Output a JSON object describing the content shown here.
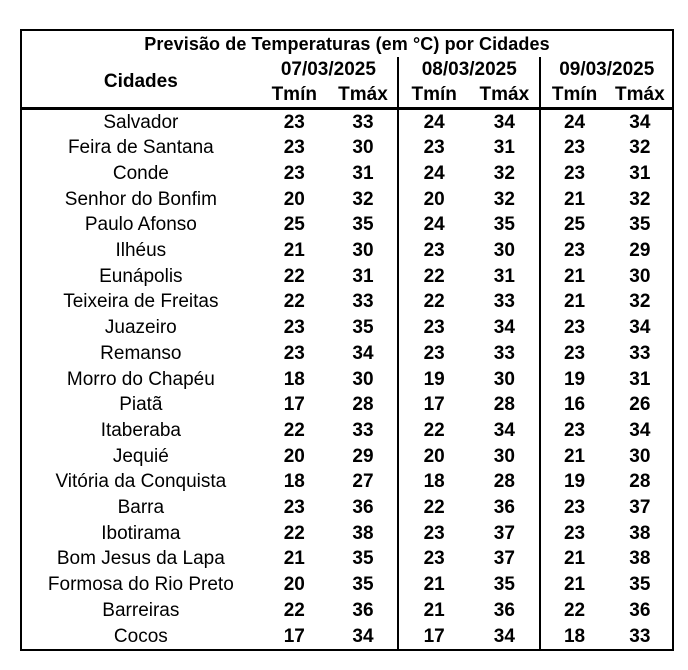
{
  "chart_data": {
    "type": "table",
    "title": "Previsão de Temperaturas (em °C) por Cidades",
    "city_column_header": "Cidades",
    "date_headers": [
      "07/03/2025",
      "08/03/2025",
      "09/03/2025"
    ],
    "sub_headers": [
      "Tmín",
      "Tmáx"
    ],
    "rows": [
      {
        "city": "Salvador",
        "temps": [
          23,
          33,
          24,
          34,
          24,
          34
        ]
      },
      {
        "city": "Feira de Santana",
        "temps": [
          23,
          30,
          23,
          31,
          23,
          32
        ]
      },
      {
        "city": "Conde",
        "temps": [
          23,
          31,
          24,
          32,
          23,
          31
        ]
      },
      {
        "city": "Senhor do Bonfim",
        "temps": [
          20,
          32,
          20,
          32,
          21,
          32
        ]
      },
      {
        "city": "Paulo Afonso",
        "temps": [
          25,
          35,
          24,
          35,
          25,
          35
        ]
      },
      {
        "city": "Ilhéus",
        "temps": [
          21,
          30,
          23,
          30,
          23,
          29
        ]
      },
      {
        "city": "Eunápolis",
        "temps": [
          22,
          31,
          22,
          31,
          21,
          30
        ]
      },
      {
        "city": "Teixeira de Freitas",
        "temps": [
          22,
          33,
          22,
          33,
          21,
          32
        ]
      },
      {
        "city": "Juazeiro",
        "temps": [
          23,
          35,
          23,
          34,
          23,
          34
        ]
      },
      {
        "city": "Remanso",
        "temps": [
          23,
          34,
          23,
          33,
          23,
          33
        ]
      },
      {
        "city": "Morro do Chapéu",
        "temps": [
          18,
          30,
          19,
          30,
          19,
          31
        ]
      },
      {
        "city": "Piatã",
        "temps": [
          17,
          28,
          17,
          28,
          16,
          26
        ]
      },
      {
        "city": "Itaberaba",
        "temps": [
          22,
          33,
          22,
          34,
          23,
          34
        ]
      },
      {
        "city": "Jequié",
        "temps": [
          20,
          29,
          20,
          30,
          21,
          30
        ]
      },
      {
        "city": "Vitória da Conquista",
        "temps": [
          18,
          27,
          18,
          28,
          19,
          28
        ]
      },
      {
        "city": "Barra",
        "temps": [
          23,
          36,
          22,
          36,
          23,
          37
        ]
      },
      {
        "city": "Ibotirama",
        "temps": [
          22,
          38,
          23,
          37,
          23,
          38
        ]
      },
      {
        "city": "Bom Jesus da Lapa",
        "temps": [
          21,
          35,
          23,
          37,
          21,
          38
        ]
      },
      {
        "city": "Formosa do Rio Preto",
        "temps": [
          20,
          35,
          21,
          35,
          21,
          35
        ]
      },
      {
        "city": "Barreiras",
        "temps": [
          22,
          36,
          21,
          36,
          22,
          36
        ]
      },
      {
        "city": "Cocos",
        "temps": [
          17,
          34,
          17,
          34,
          18,
          33
        ]
      }
    ],
    "colors": {
      "text": "#000000",
      "border": "#000000",
      "background": "#ffffff"
    }
  }
}
